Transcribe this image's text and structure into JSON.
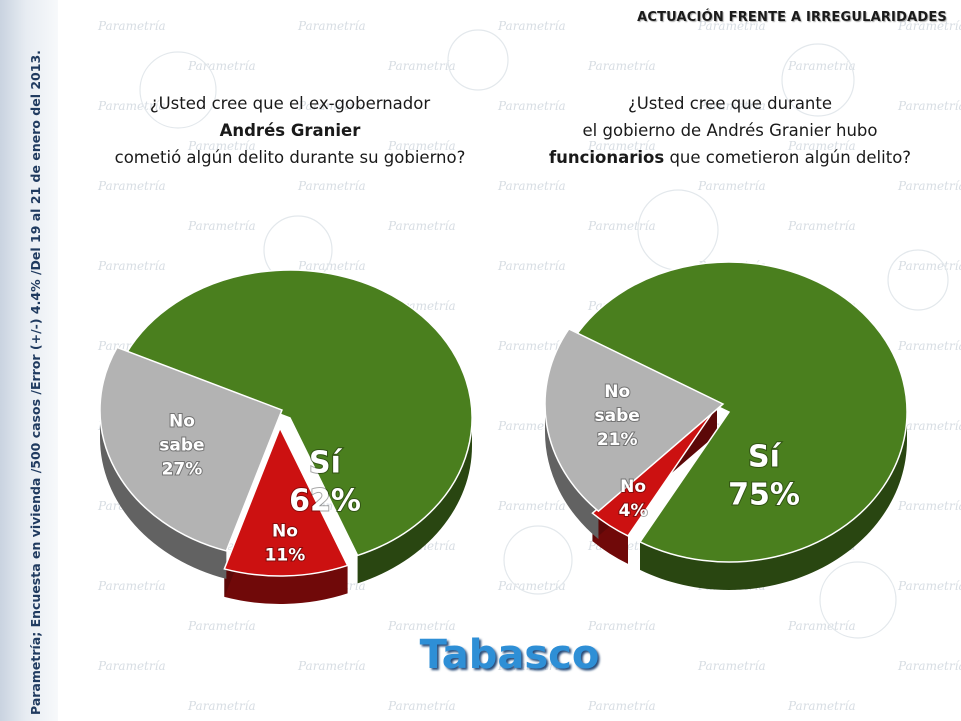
{
  "sidebar": {
    "text": "Parametría; Encuesta en vivienda /500 casos /Error (+/-) 4.4% /Del 19 al 21 de enero del 2013."
  },
  "watermark": {
    "text": "Parametría"
  },
  "header": {
    "title": "ACTUACIÓN FRENTE A IRREGULARIDADES"
  },
  "questions": [
    {
      "line1": "¿Usted cree que el ex-gobernador",
      "line2": "Andrés Granier",
      "line3": "cometió algún delito durante su gobierno?"
    },
    {
      "line1": "¿Usted cree que durante",
      "line2": "el gobierno de Andrés Granier hubo",
      "line3_bold": "funcionarios",
      "line3_rest": " que cometieron algún delito?"
    }
  ],
  "footer": {
    "title": "Tabasco"
  },
  "chart_data": [
    {
      "type": "pie",
      "title": "¿Usted cree que el ex-gobernador Andrés Granier cometió algún delito durante su gobierno?",
      "slices": [
        {
          "label": "Sí",
          "value": 62,
          "color": "#4a7f1e"
        },
        {
          "label": "No",
          "value": 11,
          "color": "#cc1111"
        },
        {
          "label": "No sabe",
          "value": 27,
          "color": "#b3b3b3"
        }
      ]
    },
    {
      "type": "pie",
      "title": "¿Usted cree que durante el gobierno de Andrés Granier hubo funcionarios que cometieron algún delito?",
      "slices": [
        {
          "label": "Sí",
          "value": 75,
          "color": "#4a7f1e"
        },
        {
          "label": "No",
          "value": 4,
          "color": "#cc1111"
        },
        {
          "label": "No sabe",
          "value": 21,
          "color": "#b3b3b3"
        }
      ]
    }
  ]
}
